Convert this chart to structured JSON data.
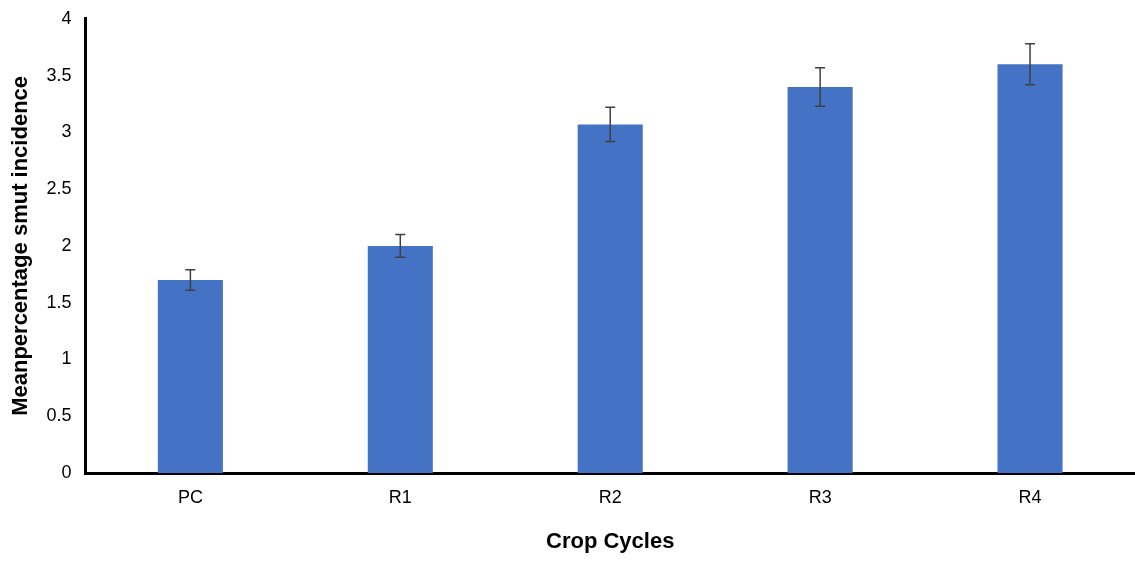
{
  "chart_data": {
    "type": "bar",
    "xlabel": "Crop Cycles",
    "ylabel": "Meanpercentage smut incidence",
    "categories": [
      "PC",
      "R1",
      "R2",
      "R3",
      "R4"
    ],
    "values": [
      1.7,
      2.0,
      3.07,
      3.4,
      3.6
    ],
    "errors": [
      0.09,
      0.1,
      0.15,
      0.17,
      0.18
    ],
    "color": "#4472c4",
    "ylim": [
      0,
      4
    ],
    "yticks": [
      0,
      0.5,
      1,
      1.5,
      2,
      2.5,
      3,
      3.5,
      4
    ],
    "grid": false,
    "legend": false
  }
}
